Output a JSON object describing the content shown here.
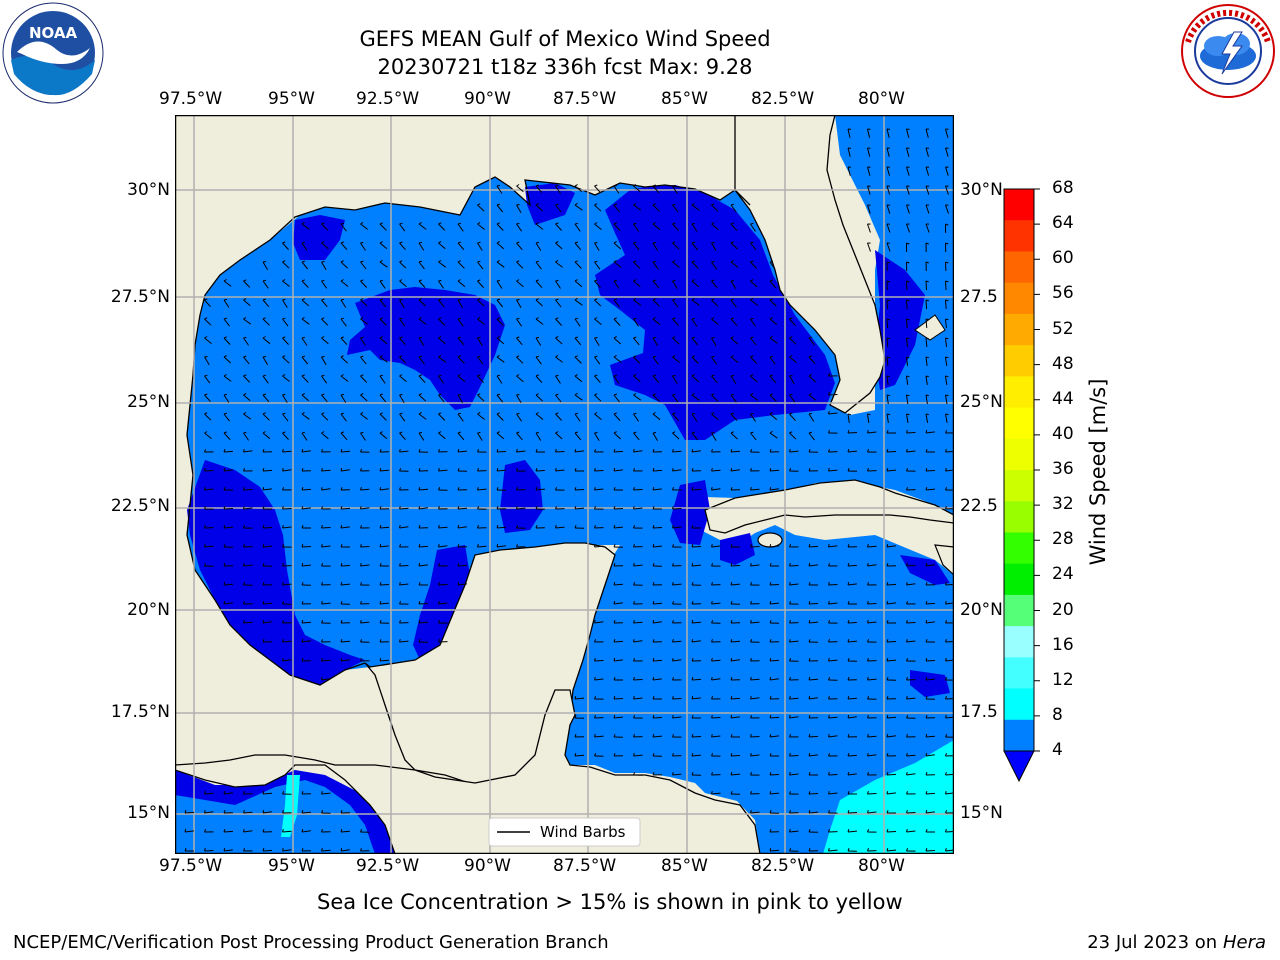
{
  "header": {
    "title_line1": "GEFS MEAN Gulf of Mexico Wind Speed",
    "title_line2": "20230721 t18z 336h fcst   Max: 9.28"
  },
  "logos": {
    "left": {
      "icon": "noaa-logo",
      "text": "NOAA",
      "ring_text": "NATIONAL OCEANIC AND ATMOSPHERIC ADMINISTRATION · U.S. DEPARTMENT OF COMMERCE"
    },
    "right": {
      "icon": "nws-logo",
      "ring_text": "NATIONAL WEATHER SERVICE"
    }
  },
  "map": {
    "lon_labels": [
      "97.5°W",
      "95°W",
      "92.5°W",
      "90°W",
      "87.5°W",
      "85°W",
      "82.5°W",
      "80°W"
    ],
    "lat_labels_left": [
      "30°N",
      "27.5°N",
      "25°N",
      "22.5°N",
      "20°N",
      "17.5°N",
      "15°N"
    ],
    "lat_labels_right": [
      "30°N",
      "27.5",
      "25°N",
      "22.5",
      "20°N",
      "17.5",
      "15°N"
    ],
    "legend_label": "Wind Barbs",
    "colors": {
      "land": "#efeddc",
      "ocean_4_8": "#0080ff",
      "ocean_below_4": "#0000e8",
      "ocean_8_12": "#00ffff",
      "grid": "#b0b0b0"
    }
  },
  "colorbar": {
    "label": "Wind Speed [m/s]",
    "ticks": [
      "68",
      "64",
      "60",
      "56",
      "52",
      "48",
      "44",
      "40",
      "36",
      "32",
      "28",
      "24",
      "20",
      "16",
      "12",
      "8",
      "4"
    ],
    "colors_top_to_bottom": [
      "#ff0000",
      "#ff3300",
      "#ff6600",
      "#ff8800",
      "#ffaa00",
      "#ffcc00",
      "#ffee00",
      "#ffff00",
      "#eeff00",
      "#ccff00",
      "#99ff00",
      "#33ff00",
      "#00ee00",
      "#55ff77",
      "#99ffff",
      "#44ffff",
      "#00ffff",
      "#0080ff"
    ],
    "extend_color": "#0000ff"
  },
  "footer": {
    "note": "Sea Ice Concentration > 15% is shown in pink to yellow",
    "credit": "NCEP/EMC/Verification Post Processing Product Generation Branch",
    "date": "23 Jul 2023 on",
    "machine": "Hera"
  }
}
